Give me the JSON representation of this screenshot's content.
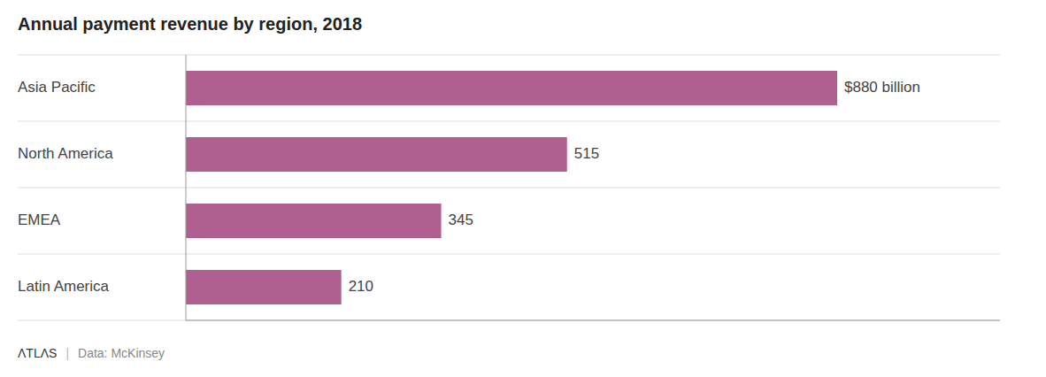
{
  "chart_data": {
    "type": "bar",
    "orientation": "horizontal",
    "title": "Annual payment revenue by region, 2018",
    "categories": [
      "Asia Pacific",
      "North America",
      "EMEA",
      "Latin America"
    ],
    "values": [
      880,
      515,
      345,
      210
    ],
    "value_labels": [
      "$880 billion",
      "515",
      "345",
      "210"
    ],
    "data_labels": true,
    "color": "#b06090",
    "xlim": [
      0,
      1100
    ],
    "tick_labels": "y",
    "grid": false,
    "annotations": [
      "ΛTLΛS",
      "|",
      "Data:  McKinsey"
    ]
  }
}
